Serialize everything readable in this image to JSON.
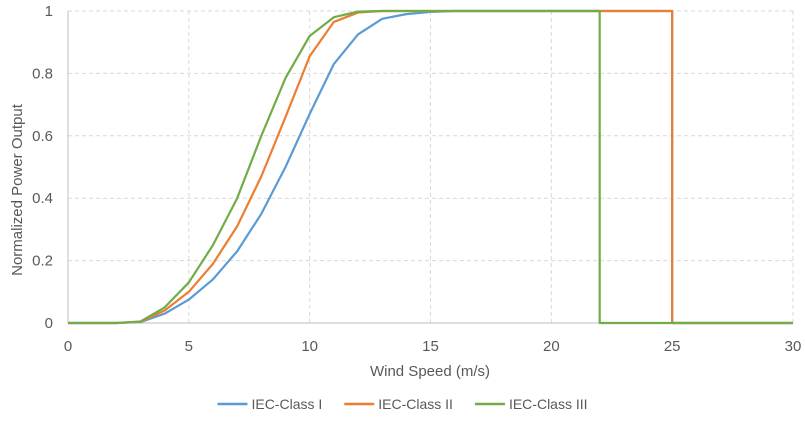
{
  "chart_data": {
    "type": "line",
    "xlabel": "Wind Speed (m/s)",
    "ylabel": "Normalized Power Output",
    "xlim": [
      0,
      30
    ],
    "ylim": [
      0,
      1
    ],
    "x_ticks": [
      0,
      5,
      10,
      15,
      20,
      25,
      30
    ],
    "y_ticks": [
      0,
      0.2,
      0.4,
      0.6,
      0.8,
      1
    ],
    "y_tick_labels": [
      "0",
      "0.2",
      "0.4",
      "0.6",
      "0.8",
      "1"
    ],
    "x_tick_labels": [
      "0",
      "5",
      "10",
      "15",
      "20",
      "25",
      "30"
    ],
    "grid": true,
    "legend_position": "bottom",
    "series": [
      {
        "name": "IEC-Class I",
        "color": "#5b9bd5",
        "x": [
          0,
          1,
          2,
          3,
          4,
          5,
          6,
          7,
          8,
          9,
          10,
          11,
          12,
          13,
          14,
          15,
          16,
          17,
          18,
          19,
          20,
          21,
          22,
          23,
          24,
          25,
          25,
          26,
          27,
          28,
          29,
          30
        ],
        "y": [
          0,
          0,
          0,
          0.003,
          0.03,
          0.075,
          0.14,
          0.23,
          0.35,
          0.5,
          0.67,
          0.83,
          0.925,
          0.975,
          0.99,
          0.997,
          1,
          1,
          1,
          1,
          1,
          1,
          1,
          1,
          1,
          1,
          0,
          0,
          0,
          0,
          0,
          0
        ]
      },
      {
        "name": "IEC-Class II",
        "color": "#ed7d31",
        "x": [
          0,
          1,
          2,
          3,
          4,
          5,
          6,
          7,
          8,
          9,
          10,
          11,
          12,
          13,
          14,
          15,
          16,
          17,
          18,
          19,
          20,
          21,
          22,
          23,
          24,
          25,
          25,
          26,
          27,
          28,
          29,
          30
        ],
        "y": [
          0,
          0,
          0,
          0.004,
          0.04,
          0.1,
          0.19,
          0.31,
          0.47,
          0.66,
          0.855,
          0.965,
          0.995,
          1,
          1,
          1,
          1,
          1,
          1,
          1,
          1,
          1,
          1,
          1,
          1,
          1,
          0,
          0,
          0,
          0,
          0,
          0
        ]
      },
      {
        "name": "IEC-Class III",
        "color": "#70ad47",
        "x": [
          0,
          1,
          2,
          3,
          4,
          5,
          6,
          7,
          8,
          9,
          10,
          11,
          12,
          13,
          14,
          15,
          16,
          17,
          18,
          19,
          20,
          21,
          22,
          22,
          23,
          24,
          25,
          26,
          27,
          28,
          29,
          30
        ],
        "y": [
          0,
          0,
          0,
          0.005,
          0.05,
          0.13,
          0.25,
          0.4,
          0.6,
          0.785,
          0.92,
          0.98,
          0.998,
          1,
          1,
          1,
          1,
          1,
          1,
          1,
          1,
          1,
          1,
          0,
          0,
          0,
          0,
          0,
          0,
          0,
          0,
          0
        ]
      }
    ]
  }
}
